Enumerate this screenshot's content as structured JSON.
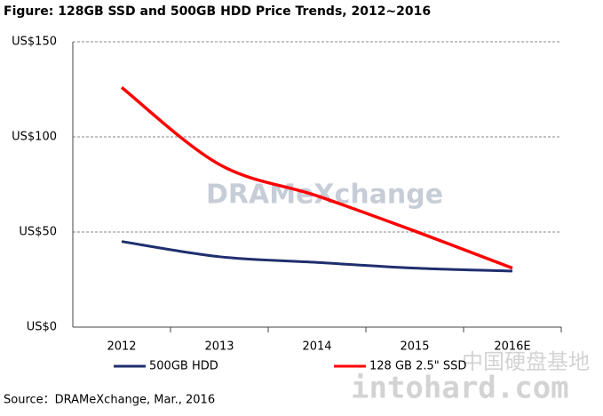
{
  "chart_data": {
    "type": "line",
    "title": "Figure: 128GB SSD and 500GB HDD Price Trends, 2012~2016",
    "categories": [
      "2012",
      "2013",
      "2014",
      "2015",
      "2016E"
    ],
    "series": [
      {
        "name": "500GB HDD",
        "color": "#1f2f6e",
        "values": [
          45,
          37,
          34,
          31,
          29.5
        ]
      },
      {
        "name": "128 GB 2.5\" SSD",
        "color": "#ff0000",
        "values": [
          126,
          85.5,
          69,
          50.5,
          31
        ]
      }
    ],
    "ylim": [
      0,
      150
    ],
    "yticks": [
      {
        "value": 0,
        "label": "US$0"
      },
      {
        "value": 50,
        "label": "US$50"
      },
      {
        "value": 100,
        "label": "US$100"
      },
      {
        "value": 150,
        "label": "US$150"
      }
    ],
    "grid": true,
    "legend": "bottom",
    "source": "Source：DRAMeXchange, Mar., 2016",
    "watermarks": [
      "DRAMeXchange",
      "中国硬盘基地",
      "intohard.com"
    ]
  }
}
